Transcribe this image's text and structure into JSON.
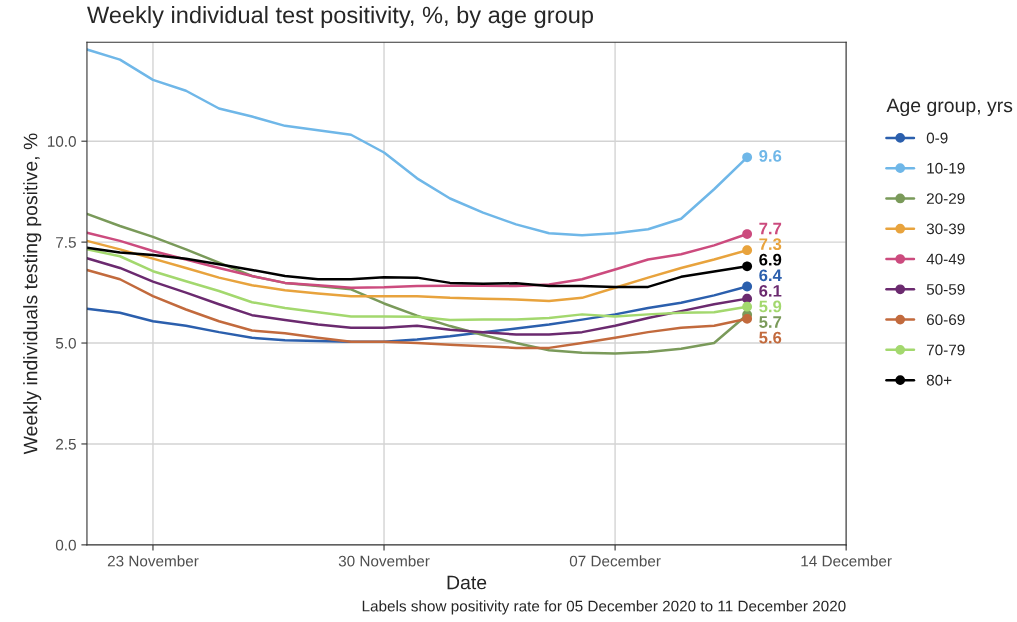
{
  "chart_data": {
    "type": "line",
    "title": "Weekly individual test positivity, %, by age group",
    "xlabel": "Date",
    "ylabel": "Weekly individuals testing positive, %",
    "legend_title": "Age group, yrs",
    "annotations": [
      "Labels show positivity rate for 05 December 2020 to 11 December 2020"
    ],
    "x": [
      "2020-11-21",
      "2020-11-22",
      "2020-11-23",
      "2020-11-24",
      "2020-11-25",
      "2020-11-26",
      "2020-11-27",
      "2020-11-28",
      "2020-11-29",
      "2020-11-30",
      "2020-12-01",
      "2020-12-02",
      "2020-12-03",
      "2020-12-04",
      "2020-12-05",
      "2020-12-06",
      "2020-12-07",
      "2020-12-08",
      "2020-12-09",
      "2020-12-10",
      "2020-12-11"
    ],
    "series": [
      {
        "name": "0-9",
        "color": "#2b5fad",
        "values": [
          5.85,
          5.75,
          5.54,
          5.43,
          5.27,
          5.13,
          5.07,
          5.05,
          5.03,
          5.03,
          5.09,
          5.17,
          5.27,
          5.36,
          5.46,
          5.58,
          5.71,
          5.87,
          6.0,
          6.18,
          6.4
        ],
        "value_labels": [
          null,
          null,
          null,
          null,
          null,
          null,
          null,
          null,
          null,
          null,
          null,
          null,
          null,
          null,
          null,
          null,
          null,
          null,
          null,
          null,
          "6.4"
        ]
      },
      {
        "name": "10-19",
        "color": "#6fb7e8",
        "values": [
          12.27,
          12.02,
          11.52,
          11.25,
          10.81,
          10.61,
          10.38,
          10.27,
          10.16,
          9.72,
          9.08,
          8.58,
          8.23,
          7.94,
          7.72,
          7.67,
          7.72,
          7.82,
          8.08,
          8.81,
          9.6
        ],
        "value_labels": [
          null,
          null,
          null,
          null,
          null,
          null,
          null,
          null,
          null,
          null,
          null,
          null,
          null,
          null,
          null,
          null,
          null,
          null,
          null,
          null,
          "9.6"
        ]
      },
      {
        "name": "20-29",
        "color": "#7a9a5a",
        "values": [
          8.2,
          7.9,
          7.63,
          7.32,
          6.99,
          6.66,
          6.49,
          6.41,
          6.33,
          5.98,
          5.68,
          5.42,
          5.2,
          5.0,
          4.82,
          4.76,
          4.74,
          4.78,
          4.86,
          5.0,
          5.7
        ],
        "value_labels": [
          null,
          null,
          null,
          null,
          null,
          null,
          null,
          null,
          null,
          null,
          null,
          null,
          null,
          null,
          null,
          null,
          null,
          null,
          null,
          null,
          "5.7"
        ]
      },
      {
        "name": "30-39",
        "color": "#e8a33d",
        "values": [
          7.53,
          7.32,
          7.09,
          6.86,
          6.62,
          6.43,
          6.31,
          6.23,
          6.16,
          6.16,
          6.16,
          6.12,
          6.1,
          6.08,
          6.04,
          6.12,
          6.37,
          6.62,
          6.86,
          7.07,
          7.3
        ],
        "value_labels": [
          null,
          null,
          null,
          null,
          null,
          null,
          null,
          null,
          null,
          null,
          null,
          null,
          null,
          null,
          null,
          null,
          null,
          null,
          null,
          null,
          "7.3"
        ]
      },
      {
        "name": "40-49",
        "color": "#cc4b7e",
        "values": [
          7.73,
          7.53,
          7.28,
          7.07,
          6.86,
          6.66,
          6.49,
          6.43,
          6.37,
          6.38,
          6.41,
          6.42,
          6.42,
          6.41,
          6.45,
          6.58,
          6.82,
          7.07,
          7.2,
          7.42,
          7.7
        ],
        "value_labels": [
          null,
          null,
          null,
          null,
          null,
          null,
          null,
          null,
          null,
          null,
          null,
          null,
          null,
          null,
          null,
          null,
          null,
          null,
          null,
          null,
          "7.7"
        ]
      },
      {
        "name": "50-59",
        "color": "#6b2a6f",
        "values": [
          7.1,
          6.86,
          6.52,
          6.25,
          5.96,
          5.69,
          5.57,
          5.46,
          5.38,
          5.38,
          5.43,
          5.33,
          5.27,
          5.21,
          5.21,
          5.27,
          5.43,
          5.62,
          5.79,
          5.96,
          6.1
        ],
        "value_labels": [
          null,
          null,
          null,
          null,
          null,
          null,
          null,
          null,
          null,
          null,
          null,
          null,
          null,
          null,
          null,
          null,
          null,
          null,
          null,
          null,
          "6.1"
        ]
      },
      {
        "name": "60-69",
        "color": "#c26a3d",
        "values": [
          6.81,
          6.58,
          6.16,
          5.83,
          5.54,
          5.31,
          5.24,
          5.13,
          5.03,
          5.03,
          5.0,
          4.96,
          4.92,
          4.88,
          4.88,
          5.0,
          5.13,
          5.27,
          5.38,
          5.43,
          5.6
        ],
        "value_labels": [
          null,
          null,
          null,
          null,
          null,
          null,
          null,
          null,
          null,
          null,
          null,
          null,
          null,
          null,
          null,
          null,
          null,
          null,
          null,
          null,
          "5.6"
        ]
      },
      {
        "name": "70-79",
        "color": "#a3d86e",
        "values": [
          7.32,
          7.15,
          6.78,
          6.53,
          6.29,
          6.01,
          5.87,
          5.76,
          5.66,
          5.66,
          5.65,
          5.57,
          5.58,
          5.58,
          5.62,
          5.71,
          5.66,
          5.71,
          5.75,
          5.76,
          5.9
        ],
        "value_labels": [
          null,
          null,
          null,
          null,
          null,
          null,
          null,
          null,
          null,
          null,
          null,
          null,
          null,
          null,
          null,
          null,
          null,
          null,
          null,
          null,
          "5.9"
        ]
      },
      {
        "name": "80+",
        "color": "#000000",
        "values": [
          7.36,
          7.24,
          7.18,
          7.09,
          6.95,
          6.81,
          6.66,
          6.58,
          6.58,
          6.63,
          6.62,
          6.49,
          6.47,
          6.48,
          6.41,
          6.41,
          6.39,
          6.39,
          6.64,
          6.77,
          6.9
        ],
        "value_labels": [
          null,
          null,
          null,
          null,
          null,
          null,
          null,
          null,
          null,
          null,
          null,
          null,
          null,
          null,
          null,
          null,
          null,
          null,
          null,
          null,
          "6.9"
        ]
      },
      {
        "type": "scatter",
        "marker": "circle",
        "x": [
          "2020-12-11",
          "2020-12-11",
          "2020-12-11",
          "2020-12-11",
          "2020-12-11",
          "2020-12-11",
          "2020-12-11",
          "2020-12-11",
          "2020-12-11"
        ],
        "values": [
          6.4,
          9.6,
          5.7,
          7.3,
          7.7,
          6.1,
          5.6,
          5.9,
          6.9
        ],
        "colors": [
          "#2b5fad",
          "#6fb7e8",
          "#7a9a5a",
          "#e8a33d",
          "#cc4b7e",
          "#6b2a6f",
          "#c26a3d",
          "#a3d86e",
          "#000000"
        ]
      }
    ],
    "xlim": [
      "2020-11-21",
      "2020-12-14"
    ],
    "xticks": [
      {
        "value": "2020-11-23",
        "label": "23 November"
      },
      {
        "value": "2020-11-30",
        "label": "30 November"
      },
      {
        "value": "2020-12-07",
        "label": "07 December"
      },
      {
        "value": "2020-12-14",
        "label": "14 December"
      }
    ],
    "ylim": [
      0,
      12.45
    ],
    "yticks": [
      {
        "value": 0,
        "label": "0.0"
      },
      {
        "value": 2.5,
        "label": "2.5"
      },
      {
        "value": 5,
        "label": "5.0"
      },
      {
        "value": 7.5,
        "label": "7.5"
      },
      {
        "value": 10,
        "label": "10.0"
      }
    ],
    "grid": true,
    "legend": "right",
    "line_style": "solid"
  }
}
